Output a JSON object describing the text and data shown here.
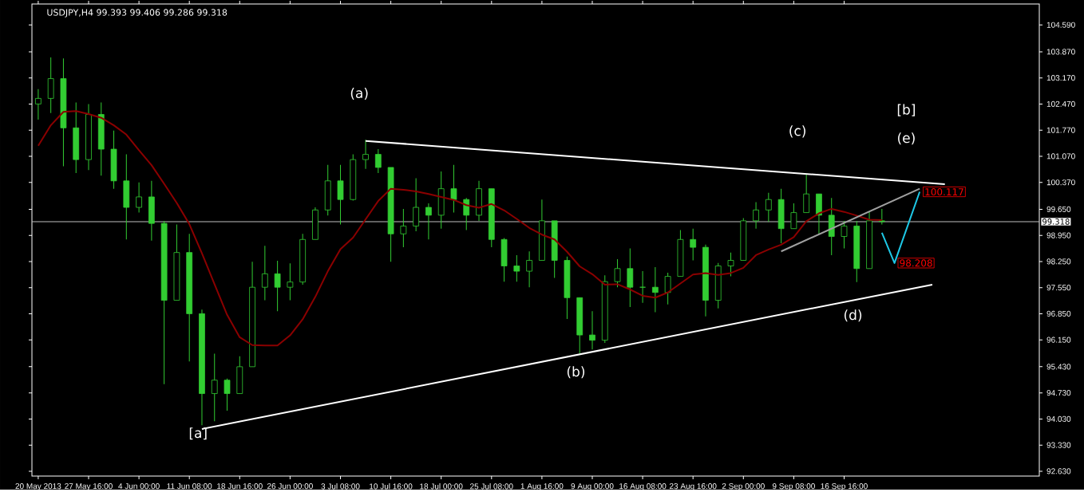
{
  "chart_data": {
    "type": "candlestick",
    "title": "USDJPY,H4  99.393 99.406 99.286 99.318",
    "color": "#32cd32",
    "categories": [
      "20 May 2013",
      null,
      null,
      null,
      "27 May 16:00",
      null,
      null,
      null,
      "4 Jun 00:00",
      null,
      null,
      null,
      "11 Jun 08:00",
      null,
      null,
      null,
      "18 Jun 16:00",
      null,
      null,
      null,
      "26 Jun 00:00",
      null,
      null,
      null,
      "3 Jul 08:00",
      null,
      null,
      null,
      "10 Jul 16:00",
      null,
      null,
      null,
      "18 Jul 00:00",
      null,
      null,
      null,
      "25 Jul 08:00",
      null,
      null,
      null,
      "1 Aug 16:00",
      null,
      null,
      null,
      "9 Aug 00:00",
      null,
      null,
      null,
      "16 Aug 08:00",
      null,
      null,
      null,
      "23 Aug 16:00",
      null,
      null,
      null,
      "2 Sep 00:00",
      null,
      null,
      null,
      "9 Sep 08:00",
      null,
      null,
      null,
      "16 Sep 16:00",
      null,
      null,
      null,
      null,
      null,
      null,
      null,
      null,
      null,
      null,
      null,
      null,
      null,
      null,
      null
    ],
    "ohlc": [
      [
        102.47,
        102.87,
        102.05,
        102.62
      ],
      [
        102.62,
        103.72,
        102.23,
        103.15
      ],
      [
        103.15,
        103.69,
        100.8,
        101.83
      ],
      [
        101.83,
        102.51,
        100.62,
        100.98
      ],
      [
        100.98,
        102.47,
        100.7,
        102.19
      ],
      [
        102.19,
        102.51,
        100.55,
        101.26
      ],
      [
        101.26,
        101.76,
        100.2,
        100.41
      ],
      [
        100.41,
        101.12,
        98.84,
        99.7
      ],
      [
        99.7,
        100.37,
        99.56,
        99.98
      ],
      [
        99.98,
        100.41,
        98.81,
        99.27
      ],
      [
        99.27,
        99.34,
        94.96,
        97.21
      ],
      [
        97.21,
        99.24,
        97.21,
        98.49
      ],
      [
        98.49,
        98.99,
        95.57,
        96.85
      ],
      [
        96.85,
        96.96,
        93.86,
        94.71
      ],
      [
        94.71,
        95.78,
        93.97,
        95.07
      ],
      [
        95.07,
        95.11,
        94.25,
        94.71
      ],
      [
        94.71,
        95.71,
        94.71,
        95.43
      ],
      [
        95.43,
        98.24,
        95.43,
        97.56
      ],
      [
        97.56,
        98.67,
        97.21,
        97.92
      ],
      [
        97.92,
        98.27,
        96.92,
        97.56
      ],
      [
        97.56,
        98.2,
        97.21,
        97.7
      ],
      [
        97.7,
        98.99,
        97.63,
        98.84
      ],
      [
        98.84,
        99.7,
        98.84,
        99.63
      ],
      [
        99.63,
        100.84,
        99.48,
        100.41
      ],
      [
        100.41,
        100.84,
        99.24,
        99.91
      ],
      [
        99.91,
        101.12,
        99.88,
        100.98
      ],
      [
        100.98,
        101.51,
        100.73,
        101.12
      ],
      [
        101.12,
        101.26,
        100.62,
        100.77
      ],
      [
        100.77,
        100.77,
        98.24,
        98.99
      ],
      [
        98.99,
        99.66,
        98.63,
        99.2
      ],
      [
        99.2,
        100.48,
        99.06,
        99.7
      ],
      [
        99.7,
        99.81,
        98.84,
        99.49
      ],
      [
        99.49,
        100.66,
        99.13,
        100.2
      ],
      [
        100.2,
        100.84,
        99.56,
        99.91
      ],
      [
        99.91,
        99.95,
        99.09,
        99.49
      ],
      [
        99.49,
        100.41,
        99.34,
        100.2
      ],
      [
        100.2,
        100.2,
        98.63,
        98.84
      ],
      [
        98.84,
        98.88,
        97.71,
        98.13
      ],
      [
        98.13,
        98.42,
        97.71,
        97.99
      ],
      [
        97.99,
        98.52,
        97.56,
        98.28
      ],
      [
        98.28,
        99.91,
        98.28,
        99.34
      ],
      [
        99.34,
        99.34,
        97.81,
        98.28
      ],
      [
        98.28,
        98.38,
        96.71,
        97.28
      ],
      [
        97.28,
        97.28,
        95.78,
        96.28
      ],
      [
        96.28,
        96.92,
        95.89,
        96.14
      ],
      [
        96.14,
        97.88,
        96.07,
        97.71
      ],
      [
        97.71,
        98.31,
        97.56,
        98.06
      ],
      [
        98.06,
        98.6,
        97.03,
        97.56
      ],
      [
        97.56,
        97.99,
        97.14,
        97.56
      ],
      [
        97.56,
        98.1,
        96.89,
        97.42
      ],
      [
        97.42,
        97.95,
        97.1,
        97.85
      ],
      [
        97.85,
        99.09,
        97.85,
        98.84
      ],
      [
        98.84,
        99.13,
        98.28,
        98.63
      ],
      [
        98.63,
        98.7,
        96.78,
        97.21
      ],
      [
        97.21,
        98.21,
        96.99,
        98.13
      ],
      [
        98.13,
        98.49,
        97.85,
        98.28
      ],
      [
        98.28,
        99.41,
        98.28,
        99.34
      ],
      [
        99.34,
        99.84,
        99.13,
        99.63
      ],
      [
        99.63,
        100.09,
        99.31,
        99.91
      ],
      [
        99.91,
        100.2,
        98.74,
        99.13
      ],
      [
        99.13,
        99.81,
        99.13,
        99.56
      ],
      [
        99.56,
        100.59,
        99.56,
        100.06
      ],
      [
        100.06,
        100.06,
        98.99,
        99.49
      ],
      [
        99.49,
        99.95,
        98.42,
        98.92
      ],
      [
        98.92,
        99.34,
        98.6,
        99.2
      ],
      [
        99.2,
        99.34,
        97.7,
        98.06
      ],
      [
        98.06,
        99.59,
        98.06,
        99.34
      ],
      [
        99.34,
        99.66,
        99.24,
        99.318
      ],
      null,
      null,
      null,
      null,
      null,
      null,
      null,
      null,
      null,
      null,
      null,
      null
    ],
    "series": [
      {
        "type": "line",
        "color": "#8b0000",
        "values": [
          101.35,
          101.9,
          102.26,
          102.28,
          102.2,
          102.1,
          101.9,
          101.65,
          101.23,
          100.83,
          100.33,
          99.82,
          99.25,
          98.47,
          97.64,
          96.82,
          96.22,
          96.01,
          96.0,
          96.0,
          96.27,
          96.7,
          97.3,
          97.99,
          98.58,
          98.89,
          99.38,
          99.87,
          100.2,
          100.17,
          100.13,
          100.06,
          99.98,
          99.9,
          99.76,
          99.69,
          99.79,
          99.62,
          99.39,
          99.15,
          98.97,
          98.84,
          98.51,
          98.12,
          97.91,
          97.63,
          97.64,
          97.5,
          97.33,
          97.28,
          97.42,
          97.66,
          97.9,
          97.94,
          97.89,
          97.94,
          98.08,
          98.42,
          98.57,
          98.7,
          98.9,
          99.33,
          99.54,
          99.66,
          99.58,
          99.48,
          99.37,
          99.36,
          null,
          null,
          null,
          null,
          null,
          null,
          null,
          null,
          null,
          null,
          null,
          null
        ]
      },
      {
        "type": "line",
        "color": "#ffffff",
        "values": [
          null,
          null,
          null,
          null,
          null,
          null,
          null,
          null,
          null,
          null,
          null,
          null,
          null,
          null,
          null,
          null,
          null,
          null,
          null,
          null,
          null,
          null,
          null,
          null,
          null,
          null,
          101.48,
          null,
          null,
          null,
          null,
          null,
          null,
          null,
          null,
          null,
          null,
          null,
          null,
          null,
          null,
          null,
          null,
          null,
          null,
          null,
          null,
          null,
          null,
          null,
          null,
          null,
          null,
          null,
          null,
          null,
          null,
          null,
          null,
          null,
          null,
          null,
          null,
          null,
          null,
          null,
          null,
          null,
          null,
          null,
          null,
          null,
          100.32,
          null,
          null,
          null,
          null,
          null,
          null,
          null
        ]
      },
      {
        "type": "line",
        "color": "#ffffff",
        "values": [
          null,
          null,
          null,
          null,
          null,
          null,
          null,
          null,
          null,
          null,
          null,
          null,
          null,
          93.76,
          null,
          null,
          null,
          null,
          null,
          null,
          null,
          null,
          null,
          null,
          null,
          null,
          null,
          null,
          null,
          null,
          null,
          null,
          null,
          null,
          null,
          null,
          null,
          null,
          null,
          null,
          null,
          null,
          null,
          null,
          null,
          null,
          null,
          null,
          null,
          null,
          null,
          null,
          null,
          null,
          null,
          null,
          null,
          null,
          null,
          null,
          null,
          null,
          null,
          null,
          null,
          null,
          null,
          null,
          null,
          null,
          null,
          97.63,
          null,
          null,
          null,
          null,
          null,
          null,
          null,
          null
        ]
      },
      {
        "type": "line",
        "color": "#a0a0a0",
        "values": [
          null,
          null,
          null,
          null,
          null,
          null,
          null,
          null,
          null,
          null,
          null,
          null,
          null,
          null,
          null,
          null,
          null,
          null,
          null,
          null,
          null,
          null,
          null,
          null,
          null,
          null,
          null,
          null,
          null,
          null,
          null,
          null,
          null,
          null,
          null,
          null,
          null,
          null,
          null,
          null,
          null,
          null,
          null,
          null,
          null,
          null,
          null,
          null,
          null,
          null,
          null,
          null,
          null,
          null,
          null,
          null,
          null,
          null,
          null,
          98.52,
          null,
          null,
          null,
          null,
          null,
          null,
          null,
          null,
          null,
          null,
          100.2,
          null,
          null,
          null,
          null,
          null,
          null,
          null,
          null,
          null
        ]
      },
      {
        "type": "line",
        "color": "#1ec8e6",
        "values": [
          null,
          null,
          null,
          null,
          null,
          null,
          null,
          null,
          null,
          null,
          null,
          null,
          null,
          null,
          null,
          null,
          null,
          null,
          null,
          null,
          null,
          null,
          null,
          null,
          null,
          null,
          null,
          null,
          null,
          null,
          null,
          null,
          null,
          null,
          null,
          null,
          null,
          null,
          null,
          null,
          null,
          null,
          null,
          null,
          null,
          null,
          null,
          null,
          null,
          null,
          null,
          null,
          null,
          null,
          null,
          null,
          null,
          null,
          null,
          null,
          null,
          null,
          null,
          null,
          null,
          null,
          null,
          99.02,
          98.208,
          null,
          100.117,
          null,
          null,
          null,
          null,
          null,
          null,
          null,
          null,
          null
        ],
        "value_labels": [
          null,
          null,
          null,
          null,
          null,
          null,
          null,
          null,
          null,
          null,
          null,
          null,
          null,
          null,
          null,
          null,
          null,
          null,
          null,
          null,
          null,
          null,
          null,
          null,
          null,
          null,
          null,
          null,
          null,
          null,
          null,
          null,
          null,
          null,
          null,
          null,
          null,
          null,
          null,
          null,
          null,
          null,
          null,
          null,
          null,
          null,
          null,
          null,
          null,
          null,
          null,
          null,
          null,
          null,
          null,
          null,
          null,
          null,
          null,
          null,
          null,
          null,
          null,
          null,
          null,
          null,
          null,
          null,
          "98.208",
          null,
          "100.117",
          null,
          null,
          null,
          null,
          null,
          null,
          null,
          null,
          null
        ]
      }
    ],
    "ylim": [
      92.5,
      105.15
    ],
    "yticks": [
      {
        "value": 92.63,
        "label": "92.630"
      },
      {
        "value": 93.33,
        "label": "93.330"
      },
      {
        "value": 94.03,
        "label": "94.030"
      },
      {
        "value": 94.73,
        "label": "94.730"
      },
      {
        "value": 95.43,
        "label": "95.430"
      },
      {
        "value": 96.15,
        "label": "96.150"
      },
      {
        "value": 96.85,
        "label": "96.850"
      },
      {
        "value": 97.55,
        "label": "97.550"
      },
      {
        "value": 98.25,
        "label": "98.250"
      },
      {
        "value": 98.95,
        "label": "98.950"
      },
      {
        "value": 99.65,
        "label": "99.650"
      },
      {
        "value": 100.37,
        "label": "100.370"
      },
      {
        "value": 101.07,
        "label": "101.070"
      },
      {
        "value": 101.77,
        "label": "101.770"
      },
      {
        "value": 102.47,
        "label": "102.470"
      },
      {
        "value": 103.17,
        "label": "103.170"
      },
      {
        "value": 103.87,
        "label": "103.870"
      },
      {
        "value": 104.59,
        "label": "104.590"
      }
    ],
    "ref_lines": [
      {
        "axis": "y",
        "value": 99.318,
        "label": "99.318",
        "color": "#c0c0c0"
      }
    ],
    "annotations": [
      "(a)",
      "(b)",
      "(c)",
      "(d)",
      "[b]",
      "(e)",
      "[a]"
    ]
  }
}
